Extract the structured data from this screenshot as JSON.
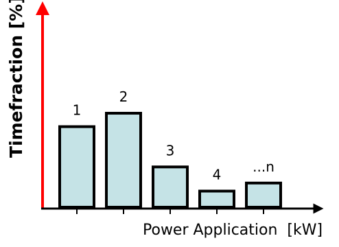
{
  "chart_data": {
    "type": "bar",
    "categories": [
      "1",
      "2",
      "3",
      "4",
      "...n"
    ],
    "values": [
      9,
      10.5,
      4.5,
      1.8,
      2.7
    ],
    "bar_labels": [
      "1",
      "2",
      "3",
      "4",
      "...n"
    ],
    "xlabel": "Power Application  [kW]",
    "ylabel": "Timefraction [%]",
    "ylim": [
      0,
      22
    ],
    "grid": false,
    "legend": "none",
    "colors": {
      "bar_fill": "#c5e3e6",
      "bar_stroke": "#000000",
      "y_axis": "#ff0000",
      "x_axis": "#000000"
    }
  }
}
